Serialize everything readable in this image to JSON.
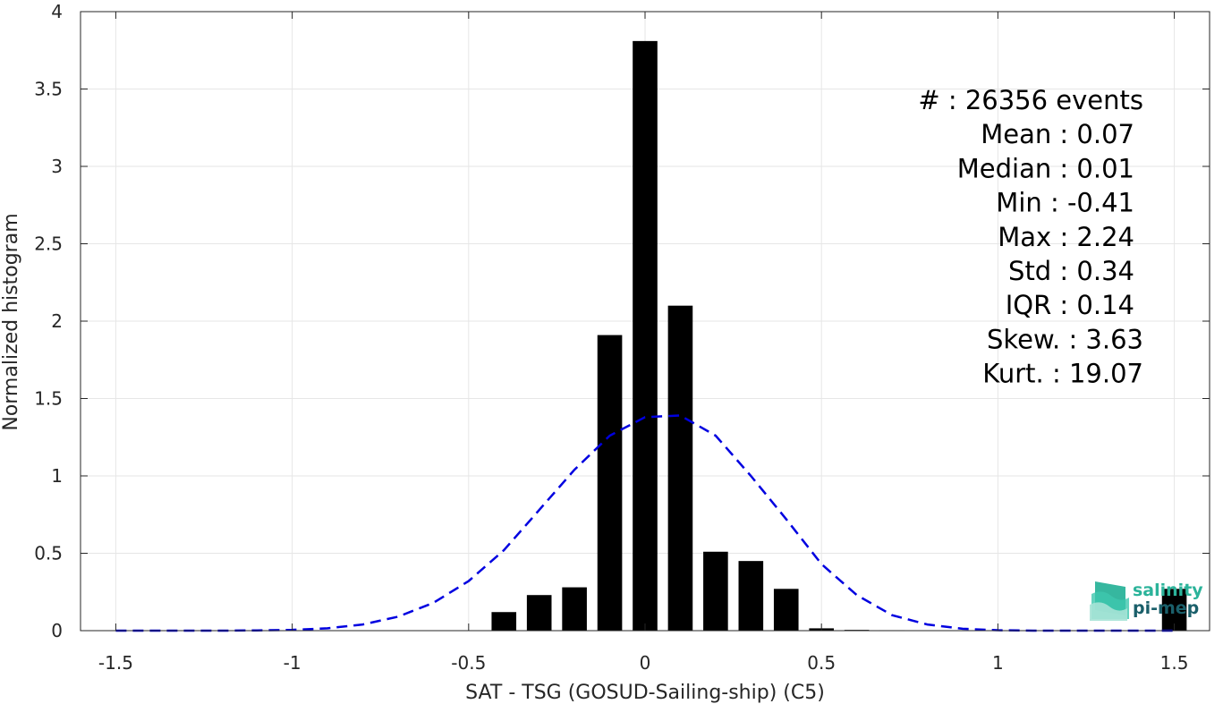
{
  "chart_data": {
    "type": "bar",
    "xlabel": "SAT - TSG (GOSUD-Sailing-ship) (C5)",
    "ylabel": "Normalized histogram",
    "xlim": [
      -1.6,
      1.6
    ],
    "ylim": [
      0,
      4
    ],
    "xticks": [
      -1.5,
      -1,
      -0.5,
      0,
      0.5,
      1,
      1.5
    ],
    "xtick_labels": [
      "-1.5",
      "-1",
      "-0.5",
      "0",
      "0.5",
      "1",
      "1.5"
    ],
    "yticks": [
      0,
      0.5,
      1,
      1.5,
      2,
      2.5,
      3,
      3.5,
      4
    ],
    "ytick_labels": [
      "0",
      "0.5",
      "1",
      "1.5",
      "2",
      "2.5",
      "3",
      "3.5",
      "4"
    ],
    "grid": true,
    "bar_width": 0.07,
    "bar_color": "#000000",
    "bars": {
      "x": [
        -0.4,
        -0.3,
        -0.2,
        -0.1,
        0.0,
        0.1,
        0.2,
        0.3,
        0.4,
        0.5,
        0.6,
        0.7,
        1.5
      ],
      "values": [
        0.12,
        0.23,
        0.28,
        1.91,
        3.81,
        2.1,
        0.51,
        0.45,
        0.27,
        0.015,
        0.005,
        0.003,
        0.27
      ]
    },
    "fit_curve": {
      "style": "dashed",
      "color": "#0000e0",
      "x": [
        -1.5,
        -1.4,
        -1.3,
        -1.2,
        -1.1,
        -1.0,
        -0.9,
        -0.8,
        -0.7,
        -0.6,
        -0.5,
        -0.4,
        -0.3,
        -0.2,
        -0.1,
        0.0,
        0.1,
        0.2,
        0.3,
        0.4,
        0.5,
        0.6,
        0.7,
        0.8,
        0.9,
        1.0,
        1.1,
        1.2,
        1.3,
        1.4,
        1.5
      ],
      "values": [
        0.0,
        0.0,
        0.0,
        0.0,
        0.002,
        0.005,
        0.015,
        0.04,
        0.09,
        0.18,
        0.32,
        0.52,
        0.78,
        1.04,
        1.26,
        1.38,
        1.39,
        1.26,
        1.0,
        0.72,
        0.43,
        0.23,
        0.1,
        0.04,
        0.012,
        0.003,
        0.0,
        0.0,
        0.0,
        0.0,
        0.0
      ]
    },
    "stats": [
      {
        "label": "#  : 26356 events"
      },
      {
        "label": "Mean : 0.07"
      },
      {
        "label": "Median : 0.01"
      },
      {
        "label": "Min : -0.41"
      },
      {
        "label": "Max : 2.24"
      },
      {
        "label": "Std : 0.34"
      },
      {
        "label": "IQR : 0.14"
      },
      {
        "label": "Skew. : 3.63"
      },
      {
        "label": "Kurt. : 19.07"
      }
    ]
  },
  "logo": {
    "line1": "salinity",
    "line2": "pi-mep",
    "color1": "#2bb39a",
    "color2": "#1a5f6a"
  }
}
